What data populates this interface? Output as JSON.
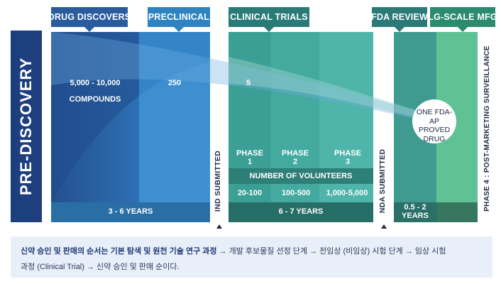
{
  "stages": {
    "pre_discovery": "PRE-DISCOVERY",
    "drug_discovers": "DRUG DISCOVERS",
    "preclinical": "PRECLINICAL",
    "clinical_trials": "CLINICAL TRIALS",
    "fda_review": "FDA REVIEW",
    "lg_scale_mfg": "LG-SCALE MFG"
  },
  "counts": {
    "compounds_line1": "5,000 - 10,000",
    "compounds_line2": "COMPOUNDS",
    "preclinical": "250",
    "clinical": "5"
  },
  "approved": {
    "line1": "ONE FDA-",
    "line2": "AP PROVED",
    "line3": "DRUG"
  },
  "phases": {
    "p1_line1": "PHASE",
    "p1_line2": "1",
    "p2_line1": "PHASE",
    "p2_line2": "2",
    "p3_line1": "PHASE",
    "p3_line2": "3",
    "volunteers_label": "NUMBER OF VOLUNTEERS",
    "v1": "20-100",
    "v2": "100-500",
    "v3": "1,000-5,000"
  },
  "durations": {
    "discovery": "3 - 6 YEARS",
    "clinical": "6 - 7 YEARS",
    "review_line1": "0.5 - 2",
    "review_line2": "YEARS"
  },
  "milestones": {
    "ind": "IND SUBMITTED",
    "nda": "NDA SUBMITTED",
    "phase4": "PHASE 4 : POST-MARKETING SURVEILLANCE"
  },
  "footer": {
    "bold_part": "신약 승인 및 판매의 순서는 기본 탐색 및 원천 기술 연구 과정",
    "rest_line1": " → 개발 후보물질 선정 단계 → 전임상 (비임상) 시험 단계 → 임상 시험",
    "line2": "과정 (Clinical Trial) → 신약 승인 및 판매 순이다."
  },
  "colors": {
    "navy": "#1e3f7e",
    "blue": "#2f83c1",
    "teal": "#3aa79d",
    "green": "#5cc495",
    "dark_text": "#1f2a44"
  }
}
